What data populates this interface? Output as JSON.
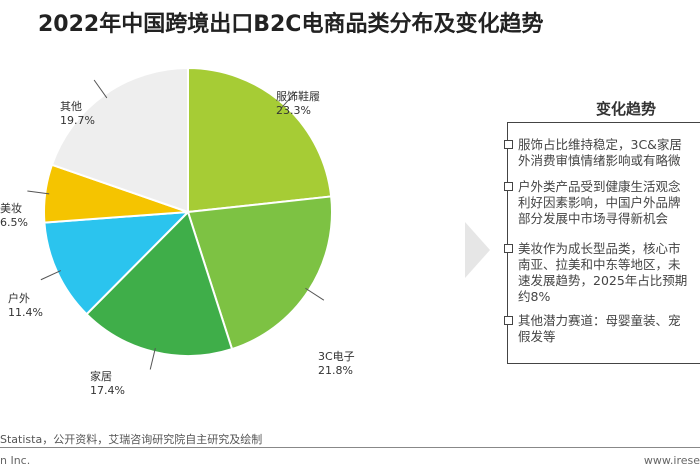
{
  "chart_data": {
    "type": "pie",
    "title": "2022年中国跨境出口B2C电商品类分布及变化趋势",
    "slices": [
      {
        "label": "服饰鞋履",
        "value": 23.3,
        "display": "23.3%",
        "color": "#a6cc35"
      },
      {
        "label": "3C电子",
        "value": 21.8,
        "display": "21.8%",
        "color": "#7dc243"
      },
      {
        "label": "家居",
        "value": 17.4,
        "display": "17.4%",
        "color": "#3fae49"
      },
      {
        "label": "户外",
        "value": 11.4,
        "display": "11.4%",
        "color": "#2bc4ee"
      },
      {
        "label": "美妆",
        "value": 6.5,
        "display": "6.5%",
        "color": "#f5c400"
      },
      {
        "label": "其他",
        "value": 19.7,
        "display": "19.7%",
        "color": "#eeeeee"
      }
    ],
    "start": "12 o'clock",
    "direction": "clockwise"
  },
  "panel": {
    "title": "变化趋势",
    "items": [
      "服饰占比维持稳定，3C&家居\n外消费审慎情绪影响或有略微",
      "户外类产品受到健康生活观念\n利好因素影响，中国户外品牌\n部分发展中市场寻得新机会",
      "美妆作为成长型品类，核心市\n南亚、拉美和中东等地区，未\n速发展趋势，2025年占比预期\n约8%",
      "其他潜力赛道：母婴童装、宠\n假发等"
    ]
  },
  "source": "Statista，公开资料，艾瑞咨询研究院自主研究及绘制",
  "footer": {
    "left": "n Inc.",
    "right": "www.irese"
  }
}
